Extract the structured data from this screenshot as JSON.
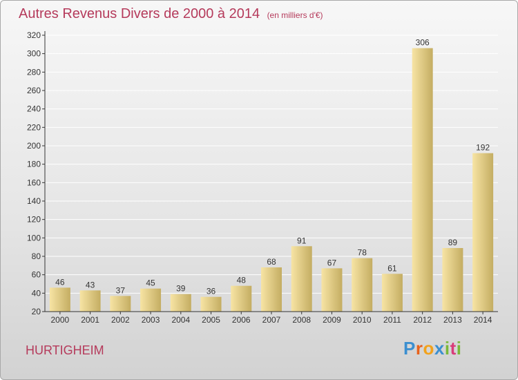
{
  "header": {
    "title": "Autres Revenus Divers de 2000 à 2014",
    "subtitle": "(en milliers d'€)"
  },
  "footer": {
    "commune": "HURTIGHEIM",
    "logo_letters": [
      "P",
      "r",
      "o",
      "x",
      "i",
      "t",
      "i"
    ],
    "logo_colors": [
      "#3b8fd0",
      "#e8621c",
      "#f2a21c",
      "#3b8fd0",
      "#79b83a",
      "#d93c7a",
      "#79b83a"
    ]
  },
  "colors": {
    "title": "#b53a5b",
    "bar_light": "#f7e4a4",
    "bar_dark": "#c4ad62",
    "axis": "#333333",
    "grid": "#ffffff"
  },
  "chart_data": {
    "type": "bar",
    "title": "Autres Revenus Divers de 2000 à 2014",
    "subtitle": "(en milliers d'€)",
    "xlabel": "",
    "ylabel": "",
    "categories": [
      "2000",
      "2001",
      "2002",
      "2003",
      "2004",
      "2005",
      "2006",
      "2007",
      "2008",
      "2009",
      "2010",
      "2011",
      "2012",
      "2013",
      "2014"
    ],
    "values": [
      46,
      43,
      37,
      45,
      39,
      36,
      48,
      68,
      91,
      67,
      78,
      61,
      306,
      89,
      192
    ],
    "ylim": [
      20,
      320
    ],
    "yticks": [
      20,
      40,
      60,
      80,
      100,
      120,
      140,
      160,
      180,
      200,
      220,
      240,
      260,
      280,
      300,
      320
    ],
    "grid": true,
    "data_labels": true
  }
}
